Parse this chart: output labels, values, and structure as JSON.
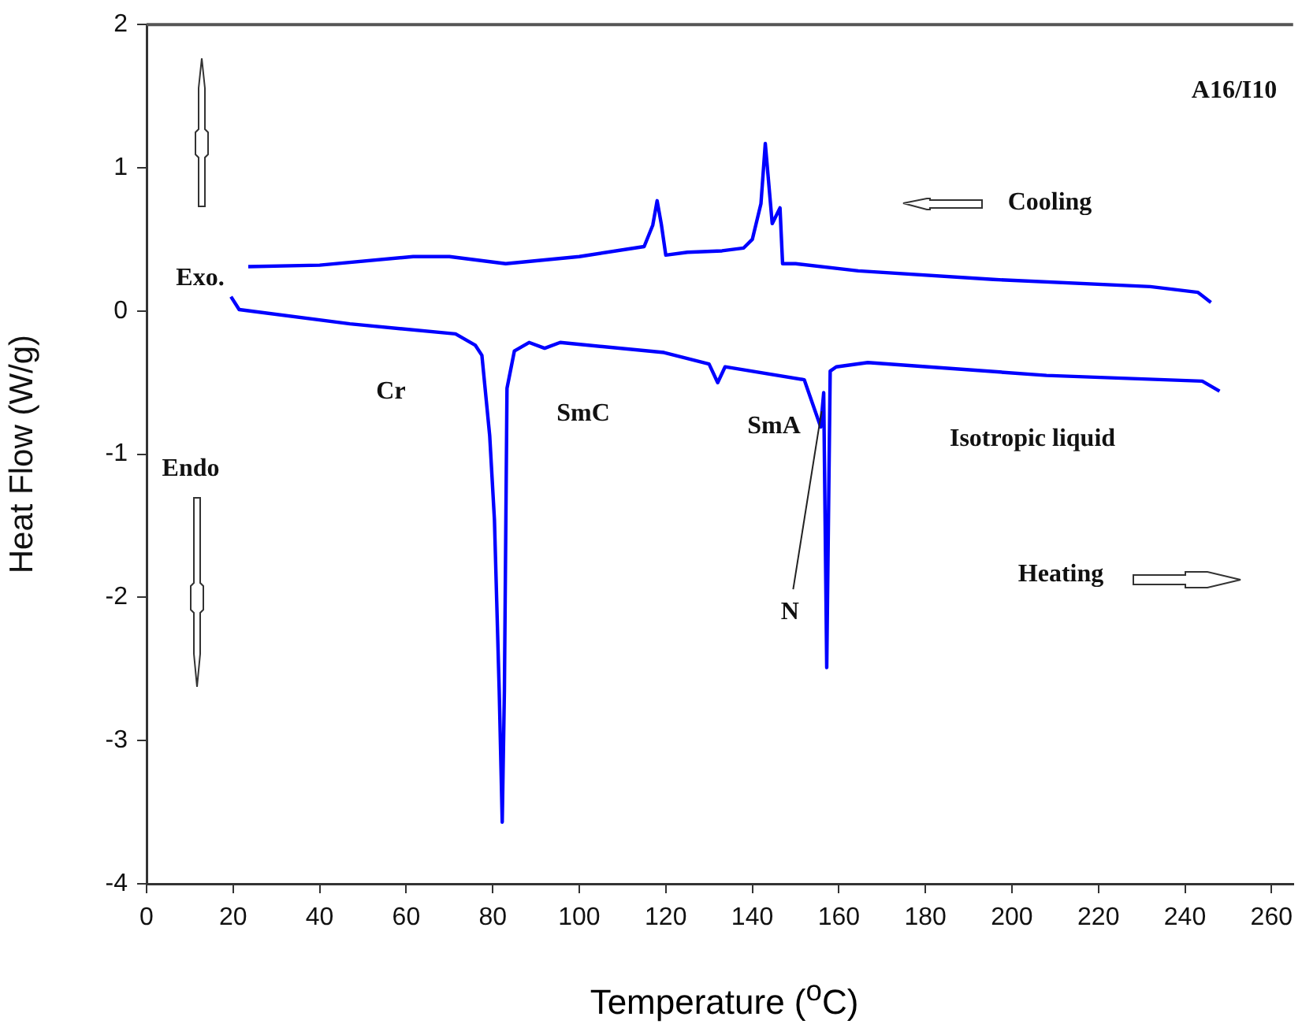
{
  "chart_data": {
    "type": "line",
    "xlabel": "Temperature ($^{o}$C)",
    "ylabel": "Heat Flow (W/g)",
    "xlim": [
      0,
      265
    ],
    "xticks": [
      0,
      20,
      40,
      60,
      80,
      100,
      120,
      140,
      160,
      180,
      200,
      220,
      240,
      260
    ],
    "ylim": [
      -4,
      2
    ],
    "yticks": [
      -4,
      -3,
      -2,
      -1,
      0,
      1,
      2
    ],
    "grid": false,
    "legend": false,
    "marker": "none",
    "line_style": "solid",
    "series": [
      {
        "color": "#0000ff",
        "x": [
          23.5,
          40,
          61.6,
          70,
          83,
          100,
          115,
          117,
          118,
          119,
          120,
          125,
          133,
          138,
          140,
          142,
          143,
          144.6,
          146.4,
          147,
          150,
          164.5,
          195.7,
          232,
          243,
          246
        ],
        "values": [
          0.31,
          0.32,
          0.38,
          0.38,
          0.33,
          0.38,
          0.45,
          0.6,
          0.77,
          0.6,
          0.39,
          0.41,
          0.42,
          0.44,
          0.5,
          0.75,
          1.17,
          0.61,
          0.72,
          0.33,
          0.33,
          0.28,
          0.22,
          0.17,
          0.13,
          0.06
        ]
      },
      {
        "color": "#0000ff",
        "x": [
          19.5,
          21.4,
          47,
          71.4,
          76,
          77.5,
          79.3,
          80.4,
          81.5,
          82.2,
          82.7,
          83.3,
          85,
          88.4,
          92,
          95.6,
          119.6,
          130,
          132,
          133.7,
          152,
          155.8,
          156.5,
          157.2,
          158,
          159.4,
          166.7,
          208,
          244,
          248
        ],
        "values": [
          0.1,
          0.01,
          -0.09,
          -0.16,
          -0.24,
          -0.31,
          -0.87,
          -1.46,
          -2.65,
          -3.57,
          -2.65,
          -0.54,
          -0.28,
          -0.22,
          -0.26,
          -0.22,
          -0.29,
          -0.37,
          -0.5,
          -0.39,
          -0.48,
          -0.81,
          -0.57,
          -2.49,
          -0.42,
          -0.39,
          -0.36,
          -0.45,
          -0.49,
          -0.56
        ]
      }
    ],
    "annotations": [
      "A16/I10",
      "Cooling",
      "Heating",
      "Exo.",
      "Endo",
      "Cr",
      "SmC",
      "SmA",
      "Isotropic liquid",
      {
        "text": "N",
        "x": 156,
        "y": -0.7
      }
    ]
  }
}
